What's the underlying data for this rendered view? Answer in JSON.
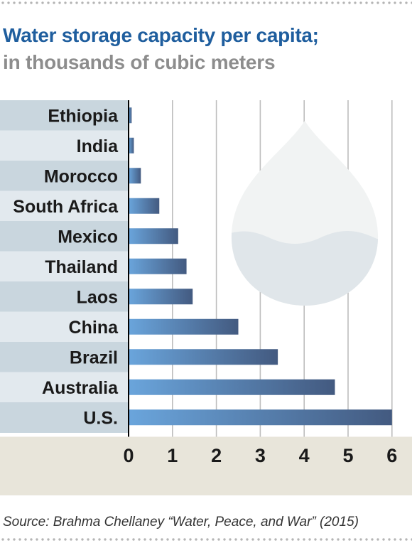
{
  "header": {
    "title": "Water storage capacity per capita;",
    "subtitle": "in thousands of cubic meters"
  },
  "footer": {
    "source": "Source: Brahma Chellaney “Water, Peace, and War” (2015)"
  },
  "chart_data": {
    "type": "bar",
    "orientation": "horizontal",
    "title": "Water storage capacity per capita;",
    "subtitle": "in thousands of cubic meters",
    "categories": [
      "Ethiopia",
      "India",
      "Morocco",
      "South Africa",
      "Mexico",
      "Thailand",
      "Laos",
      "China",
      "Brazil",
      "Australia",
      "U.S."
    ],
    "values": [
      0.07,
      0.12,
      0.28,
      0.7,
      1.13,
      1.32,
      1.46,
      2.5,
      3.4,
      4.7,
      6.0
    ],
    "xlim": [
      0,
      6
    ],
    "xticks": [
      0,
      1,
      2,
      3,
      4,
      5,
      6
    ],
    "grid": "vertical",
    "decoration": "water-drop-icon",
    "colors": {
      "bar_start": "#6aa5dc",
      "bar_end": "#435a80",
      "label_band_dark": "#c9d6de",
      "label_band_light": "#e2e9ee",
      "axis_band": "#e8e5da",
      "gridline": "#bdbdbd"
    }
  }
}
